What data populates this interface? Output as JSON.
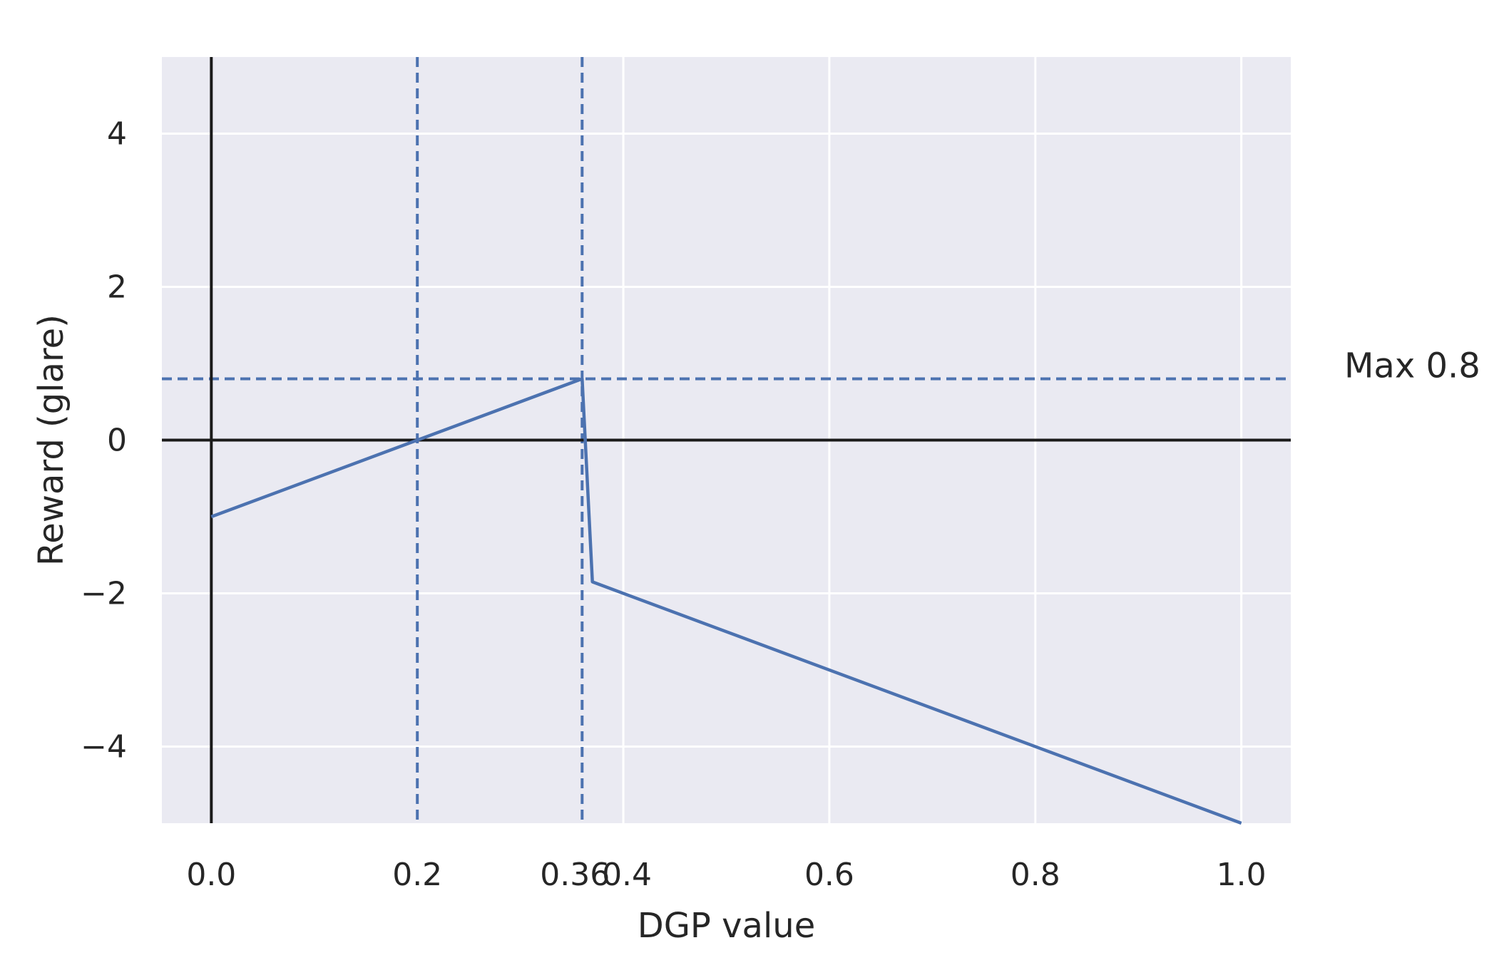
{
  "chart_data": {
    "type": "line",
    "xlabel": "DGP value",
    "ylabel": "Reward (glare)",
    "xlim": [
      -0.048,
      1.048
    ],
    "ylim": [
      -5,
      5
    ],
    "grid": true,
    "x_ticks": [
      {
        "value": 0.0,
        "label": "0.0"
      },
      {
        "value": 0.2,
        "label": "0.2"
      },
      {
        "value": 0.36,
        "label": "0.36"
      },
      {
        "value": 0.4,
        "label": "0.4"
      },
      {
        "value": 0.6,
        "label": "0.6"
      },
      {
        "value": 0.8,
        "label": "0.8"
      },
      {
        "value": 1.0,
        "label": "1.0"
      }
    ],
    "x_gridlines": [
      0.4,
      0.6,
      0.8,
      1.0
    ],
    "y_ticks": [
      {
        "value": 4,
        "label": "4"
      },
      {
        "value": 2,
        "label": "2"
      },
      {
        "value": 0,
        "label": "0"
      },
      {
        "value": -2,
        "label": "−2"
      },
      {
        "value": -4,
        "label": "−4"
      }
    ],
    "series": [
      {
        "color": "#4c72b0",
        "points": [
          [
            0.0,
            -1.0
          ],
          [
            0.36,
            0.8
          ],
          [
            0.37,
            -1.85
          ],
          [
            1.0,
            -5.0
          ]
        ]
      }
    ],
    "reference_lines": {
      "vertical_solid": [
        0.0
      ],
      "horizontal_solid": [
        0.0
      ],
      "vertical_dashed": [
        0.2,
        0.36
      ],
      "horizontal_dashed": [
        0.8
      ]
    },
    "annotation": {
      "text": "Max 0.8",
      "y": 0.8
    },
    "colors": {
      "plot_background": "#eaeaf2",
      "grid": "#ffffff",
      "series": "#4c72b0",
      "reference_solid": "#1a1a1a",
      "text": "#262626"
    }
  }
}
